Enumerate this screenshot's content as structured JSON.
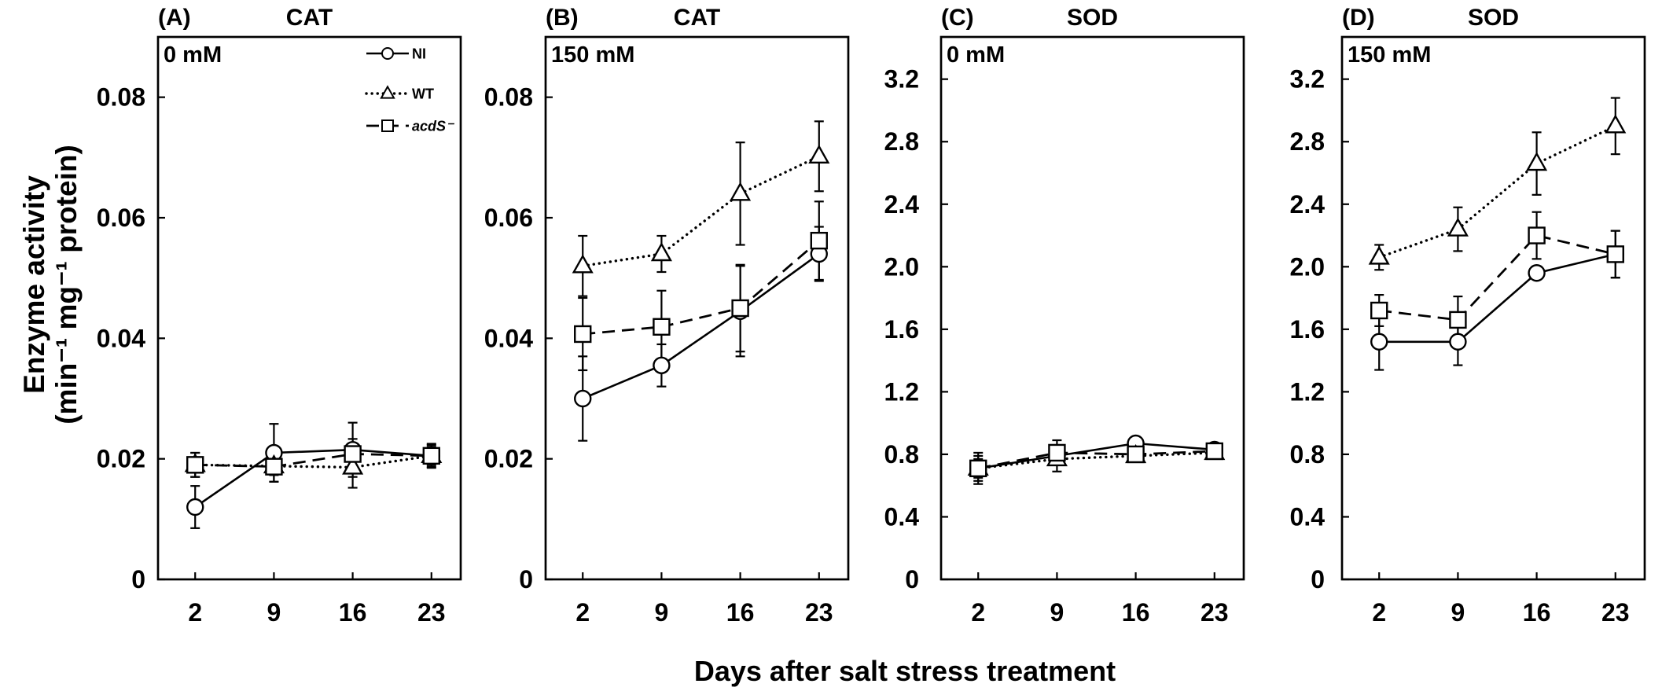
{
  "colors": {
    "ink": "#000000",
    "marker_fill": "#ffffff",
    "background": "#ffffff"
  },
  "figure": {
    "xlabel": "Days after salt stress treatment",
    "ylabel": [
      "Enzyme activity",
      "(min⁻¹ mg⁻¹ protein)"
    ]
  },
  "chart_data": [
    {
      "type": "line",
      "panel_label": "(A)",
      "title": "CAT",
      "condition": "0 mM",
      "x": [
        2,
        9,
        16,
        23
      ],
      "xlim": [
        -1.3,
        25.6
      ],
      "ylim": [
        0,
        0.09
      ],
      "yticks": [
        "0",
        "0.02",
        "0.04",
        "0.06",
        "0.08"
      ],
      "grid": false,
      "legend": {
        "placement": "top-right",
        "entries": [
          "NI",
          "WT",
          "acdS⁻"
        ]
      },
      "series": [
        {
          "marker": "circle",
          "line": "solid",
          "values": [
            0.012,
            0.021,
            0.0215,
            0.0205
          ],
          "errors": [
            0.0035,
            0.0048,
            0.0045,
            0.002
          ]
        },
        {
          "marker": "triangle",
          "line": "dotted",
          "values": [
            0.019,
            0.0188,
            0.0186,
            0.0205
          ],
          "errors": [
            0.002,
            0.0015,
            0.0034,
            0.0015
          ]
        },
        {
          "marker": "square",
          "line": "dashed",
          "values": [
            0.019,
            0.0187,
            0.0208,
            0.0205
          ],
          "errors": [
            0.002,
            0.0025,
            0.0025,
            0.0018
          ]
        }
      ]
    },
    {
      "type": "line",
      "panel_label": "(B)",
      "title": "CAT",
      "condition": "150 mM",
      "x": [
        2,
        9,
        16,
        23
      ],
      "xlim": [
        -1.3,
        25.6
      ],
      "ylim": [
        0,
        0.09
      ],
      "yticks": [
        "0",
        "0.02",
        "0.04",
        "0.06",
        "0.08"
      ],
      "grid": false,
      "series": [
        {
          "marker": "circle",
          "line": "solid",
          "values": [
            0.03,
            0.0355,
            0.0445,
            0.054
          ],
          "errors": [
            0.007,
            0.0035,
            0.0075,
            0.0045
          ]
        },
        {
          "marker": "triangle",
          "line": "dotted",
          "values": [
            0.052,
            0.054,
            0.064,
            0.0702
          ],
          "errors": [
            0.005,
            0.003,
            0.0085,
            0.0058
          ]
        },
        {
          "marker": "square",
          "line": "dashed",
          "values": [
            0.0407,
            0.0419,
            0.045,
            0.0562
          ],
          "errors": [
            0.006,
            0.006,
            0.0072,
            0.0065
          ]
        }
      ]
    },
    {
      "type": "line",
      "panel_label": "(C)",
      "title": "SOD",
      "condition": "0 mM",
      "x": [
        2,
        9,
        16,
        23
      ],
      "xlim": [
        -1.3,
        25.6
      ],
      "ylim": [
        0,
        3.47
      ],
      "yticks": [
        "0",
        "0.4",
        "0.8",
        "1.2",
        "1.6",
        "2.0",
        "2.4",
        "2.8",
        "3.2"
      ],
      "grid": false,
      "series": [
        {
          "marker": "circle",
          "line": "solid",
          "values": [
            0.71,
            0.79,
            0.87,
            0.83
          ],
          "errors": [
            0.08,
            0.06,
            0.03,
            0.03
          ]
        },
        {
          "marker": "triangle",
          "line": "dotted",
          "values": [
            0.71,
            0.77,
            0.79,
            0.81
          ],
          "errors": [
            0.06,
            0.08,
            0.03,
            0.03
          ]
        },
        {
          "marker": "square",
          "line": "dashed",
          "values": [
            0.71,
            0.81,
            0.8,
            0.82
          ],
          "errors": [
            0.1,
            0.08,
            0.04,
            0.04
          ]
        }
      ]
    },
    {
      "type": "line",
      "panel_label": "(D)",
      "title": "SOD",
      "condition": "150 mM",
      "x": [
        2,
        9,
        16,
        23
      ],
      "xlim": [
        -1.3,
        25.6
      ],
      "ylim": [
        0,
        3.47
      ],
      "yticks": [
        "0",
        "0.4",
        "0.8",
        "1.2",
        "1.6",
        "2.0",
        "2.4",
        "2.8",
        "3.2"
      ],
      "grid": false,
      "series": [
        {
          "marker": "circle",
          "line": "solid",
          "values": [
            1.52,
            1.52,
            1.96,
            2.08
          ],
          "errors": [
            0.18,
            0.15,
            0.03,
            0.15
          ]
        },
        {
          "marker": "triangle",
          "line": "dotted",
          "values": [
            2.06,
            2.24,
            2.66,
            2.9
          ],
          "errors": [
            0.08,
            0.14,
            0.2,
            0.18
          ]
        },
        {
          "marker": "square",
          "line": "dashed",
          "values": [
            1.72,
            1.66,
            2.2,
            2.08
          ],
          "errors": [
            0.1,
            0.15,
            0.15,
            0.15
          ]
        }
      ]
    }
  ]
}
